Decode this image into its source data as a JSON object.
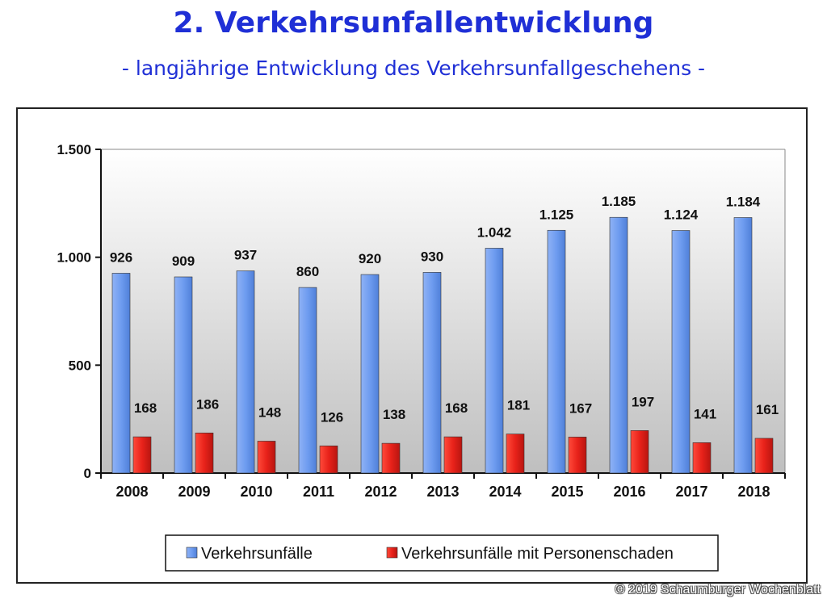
{
  "header": {
    "title": "2. Verkehrsunfallentwicklung",
    "subtitle": "- langjährige Entwicklung des Verkehrsunfallgeschehens -"
  },
  "copyright": "© 2019 Schaumburger Wochenblatt",
  "chart_data": {
    "type": "bar",
    "categories": [
      "2008",
      "2009",
      "2010",
      "2011",
      "2012",
      "2013",
      "2014",
      "2015",
      "2016",
      "2017",
      "2018"
    ],
    "series": [
      {
        "name": "Verkehrsunfälle",
        "color": "#6e9cf0",
        "values": [
          926,
          909,
          937,
          860,
          920,
          930,
          1042,
          1125,
          1185,
          1124,
          1184
        ],
        "labels": [
          "926",
          "909",
          "937",
          "860",
          "920",
          "930",
          "1.042",
          "1.125",
          "1.185",
          "1.124",
          "1.184"
        ]
      },
      {
        "name": "Verkehrsunfälle mit Personenschaden",
        "color": "#e8221a",
        "values": [
          168,
          186,
          148,
          126,
          138,
          168,
          181,
          167,
          197,
          141,
          161
        ],
        "labels": [
          "168",
          "186",
          "148",
          "126",
          "138",
          "168",
          "181",
          "167",
          "197",
          "141",
          "161"
        ]
      }
    ],
    "ylim": [
      0,
      1500
    ],
    "yticks": [
      0,
      500,
      1000,
      1500
    ],
    "ytick_labels": [
      "0",
      "500",
      "1.000",
      "1.500"
    ],
    "grid": false,
    "legend": "bottom"
  }
}
